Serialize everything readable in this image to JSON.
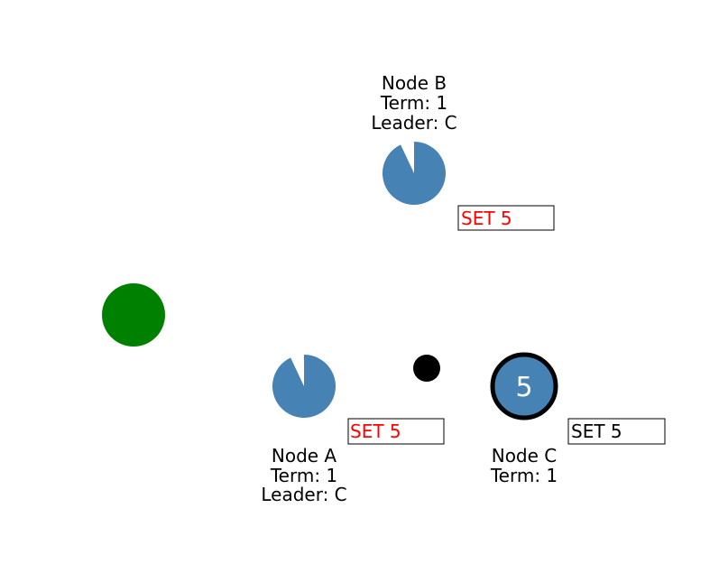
{
  "colors": {
    "node_fill": "#4682b4",
    "client_fill": "#008000",
    "message_fill": "#000000",
    "uncommitted_text": "#ff0000",
    "committed_text": "#000000",
    "leader_ring": "#000000"
  },
  "client": {
    "icon": "client-circle"
  },
  "message": {
    "icon": "message-dot"
  },
  "nodes": {
    "a": {
      "name": "Node A",
      "term": "Term: 1",
      "leader": "Leader: C",
      "role": "follower",
      "log_entry": "SET 5",
      "log_committed": false,
      "timeout_remaining": 0.93
    },
    "b": {
      "name": "Node B",
      "term": "Term: 1",
      "leader": "Leader: C",
      "role": "follower",
      "log_entry": "SET 5",
      "log_committed": false,
      "timeout_remaining": 0.93
    },
    "c": {
      "name": "Node C",
      "term": "Term: 1",
      "role": "leader",
      "value": "5",
      "log_entry": "SET 5",
      "log_committed": true
    }
  }
}
